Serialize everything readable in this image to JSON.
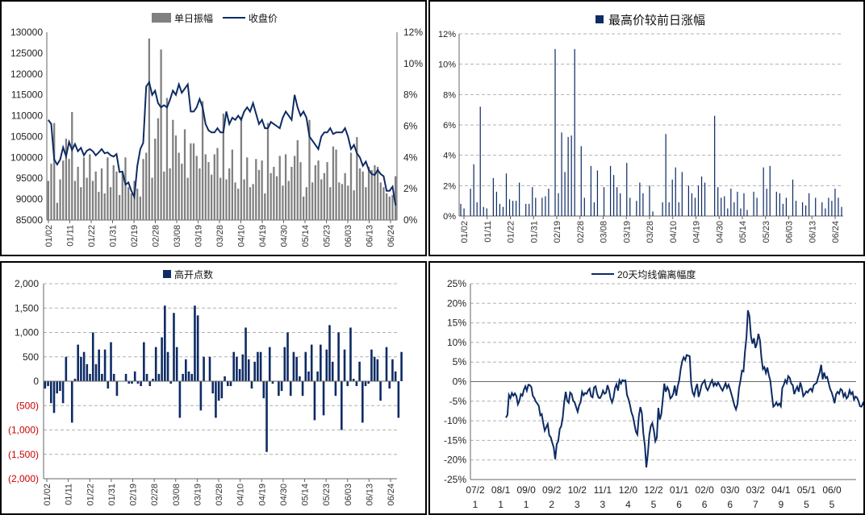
{
  "colors": {
    "gray_bar": "#808080",
    "navy": "#0d2b64",
    "grid": "#b0b0b0",
    "negative_label": "#cc0000"
  },
  "chart_data": [
    {
      "type": "bar+line",
      "title": "",
      "legend": [
        {
          "name": "单日振幅",
          "kind": "bar"
        },
        {
          "name": "收盘价",
          "kind": "line"
        }
      ],
      "legend_placement": "top",
      "y_left": {
        "min": 85000,
        "max": 130000,
        "ticks": [
          85000,
          90000,
          95000,
          100000,
          105000,
          110000,
          115000,
          120000,
          125000,
          130000
        ]
      },
      "y_right": {
        "min": 0,
        "max": 0.12,
        "tick_labels": [
          "0%",
          "2%",
          "4%",
          "6%",
          "8%",
          "10%",
          "12%"
        ]
      },
      "x_tick_labels": [
        "01/02",
        "01/11",
        "01/22",
        "01/31",
        "02/19",
        "02/28",
        "03/08",
        "03/19",
        "03/28",
        "04/10",
        "04/19",
        "04/30",
        "05/14",
        "05/23",
        "06/03",
        "06/13",
        "06/24"
      ],
      "n_points": 118,
      "amplitude_pct": [
        2.5,
        3.6,
        6.2,
        1.1,
        2.6,
        3.8,
        5.2,
        3.9,
        6.9,
        2.5,
        3.4,
        2.1,
        4.0,
        2.7,
        4.2,
        2.5,
        3.1,
        1.8,
        3.3,
        1.7,
        4.0,
        2.1,
        3.5,
        3.1,
        1.6,
        3.0,
        4.0,
        2.1,
        1.7,
        2.5,
        2.0,
        1.5,
        3.9,
        4.3,
        11.6,
        2.7,
        5.2,
        6.5,
        10.9,
        3.1,
        7.8,
        3.3,
        6.4,
        5.4,
        4.3,
        3.6,
        5.8,
        2.7,
        4.9,
        4.9,
        4.1,
        3.3,
        7.6,
        4.2,
        3.7,
        2.9,
        4.2,
        4.6,
        2.7,
        6.8,
        2.6,
        3.3,
        4.5,
        2.4,
        2.0,
        6.6,
        2.6,
        4.0,
        2.1,
        2.3,
        3.9,
        3.2,
        3.8,
        1.7,
        6.2,
        3.0,
        3.4,
        2.8,
        4.1,
        2.2,
        4.2,
        2.5,
        3.4,
        4.1,
        5.1,
        3.7,
        1.5,
        2.1,
        6.4,
        2.4,
        3.5,
        3.8,
        2.6,
        3.0,
        3.7,
        2.1,
        4.7,
        4.5,
        2.4,
        2.3,
        3.0,
        2.2,
        4.3,
        1.9,
        5.3,
        3.3,
        3.1,
        2.1,
        3.4,
        3.2,
        3.5,
        3.4,
        2.4,
        2.1,
        1.7,
        1.5,
        1.6,
        2.8
      ],
      "close": [
        109000,
        108000,
        99500,
        98300,
        99500,
        102400,
        100300,
        103700,
        101800,
        103200,
        101500,
        102300,
        100500,
        101600,
        102000,
        101500,
        100500,
        101200,
        102000,
        101000,
        101200,
        100500,
        100200,
        100800,
        96500,
        96600,
        93500,
        94000,
        92000,
        90500,
        98000,
        102000,
        103500,
        117000,
        118000,
        115000,
        116000,
        113000,
        112000,
        112500,
        112000,
        113800,
        116000,
        115000,
        117500,
        115500,
        116500,
        117500,
        111000,
        111000,
        112000,
        114000,
        112000,
        108000,
        106500,
        106000,
        106000,
        107000,
        106000,
        106000,
        111000,
        108000,
        109500,
        109000,
        110000,
        109000,
        111000,
        112000,
        111000,
        113000,
        110500,
        108000,
        109000,
        107000,
        107000,
        108500,
        108000,
        107500,
        107000,
        109500,
        111000,
        110000,
        109000,
        115000,
        112000,
        110000,
        111000,
        109500,
        105000,
        104000,
        103000,
        102000,
        105000,
        106000,
        106000,
        107000,
        105600,
        106000,
        106000,
        106000,
        107000,
        105000,
        102000,
        103000,
        101000,
        100000,
        98000,
        99000,
        97000,
        96000,
        95800,
        97000,
        96000,
        95500,
        92000,
        92000,
        93000,
        88500
      ]
    },
    {
      "type": "bar",
      "title": "最高价较前日涨幅",
      "legend_placement": "top",
      "y": {
        "min": 0,
        "max": 0.12,
        "tick_labels": [
          "0%",
          "2%",
          "4%",
          "6%",
          "8%",
          "10%",
          "12%"
        ]
      },
      "x_tick_labels": [
        "01/02",
        "01/11",
        "01/22",
        "01/31",
        "02/19",
        "02/28",
        "03/08",
        "03/19",
        "03/28",
        "04/10",
        "04/19",
        "04/30",
        "05/14",
        "05/23",
        "06/03",
        "06/13",
        "06/24"
      ],
      "n_points": 118,
      "values_pct": [
        0.8,
        0.5,
        0,
        1.8,
        3.4,
        0.9,
        7.2,
        0.6,
        0.5,
        0,
        2.5,
        1.6,
        0.8,
        0.6,
        2.8,
        1.1,
        1.0,
        1.0,
        2.2,
        0,
        0.8,
        0.8,
        1.9,
        1.2,
        0,
        1.2,
        1.3,
        1.8,
        0,
        11.0,
        1.5,
        5.5,
        2.9,
        5.2,
        5.3,
        11.0,
        0,
        4.6,
        1.2,
        0,
        3.3,
        0.9,
        3.0,
        0,
        1.9,
        0,
        3.3,
        2.7,
        1.9,
        1.5,
        0,
        3.5,
        1.2,
        0,
        1.0,
        2.2,
        1.5,
        0,
        2.0,
        0.3,
        0,
        0,
        0.9,
        5.4,
        0.9,
        2.4,
        3.2,
        0.9,
        2.9,
        0,
        2.0,
        1.5,
        1.2,
        2.0,
        2.6,
        2.2,
        0,
        0,
        6.6,
        1.9,
        1.2,
        1.3,
        0.5,
        1.8,
        0.9,
        1.6,
        0.5,
        1.5,
        0.4,
        0,
        1.6,
        1.2,
        0,
        3.2,
        1.8,
        3.3,
        0,
        1.6,
        1.5,
        0.8,
        1.2,
        0,
        2.4,
        1.0,
        0,
        0.9,
        0.7,
        1.5,
        0,
        1.2,
        0,
        0.9,
        0.5,
        1.2,
        1.0,
        1.8,
        1.2,
        0.6
      ],
      "bar_color": "#0d2b64"
    },
    {
      "type": "bar",
      "title": "高开点数",
      "legend_placement": "top",
      "y": {
        "min": -2000,
        "max": 2000,
        "tick_labels": [
          "2,000",
          "1,500",
          "1,000",
          "500",
          "0",
          "(500)",
          "(1,000)",
          "(1,500)",
          "(2,000)"
        ]
      },
      "x_tick_labels": [
        "01/02",
        "01/11",
        "01/22",
        "01/31",
        "02/19",
        "02/28",
        "03/08",
        "03/19",
        "03/28",
        "04/10",
        "04/19",
        "04/30",
        "05/14",
        "05/23",
        "06/03",
        "06/13",
        "06/24"
      ],
      "n_points": 118,
      "values": [
        -150,
        -100,
        -450,
        -650,
        -250,
        -200,
        -450,
        500,
        0,
        -850,
        50,
        750,
        500,
        600,
        350,
        150,
        1000,
        350,
        650,
        150,
        650,
        -150,
        800,
        150,
        -300,
        0,
        0,
        150,
        -50,
        -50,
        200,
        -50,
        -100,
        800,
        150,
        -100,
        50,
        700,
        150,
        900,
        1550,
        600,
        -50,
        1400,
        700,
        -750,
        150,
        450,
        200,
        150,
        1550,
        1350,
        -600,
        500,
        0,
        500,
        -250,
        -750,
        -400,
        -350,
        100,
        -100,
        -100,
        600,
        500,
        250,
        550,
        1100,
        450,
        -150,
        400,
        600,
        600,
        -350,
        -1450,
        700,
        -50,
        0,
        -300,
        -200,
        700,
        1000,
        -300,
        600,
        500,
        100,
        -300,
        600,
        200,
        750,
        -800,
        200,
        750,
        -700,
        650,
        1150,
        400,
        -300,
        1000,
        -1000,
        650,
        -100,
        1100,
        50,
        -100,
        400,
        -850,
        -100,
        -50,
        650,
        500,
        450,
        -400,
        0,
        700,
        -150,
        450,
        200,
        -750,
        600
      ],
      "bar_color": "#0d2b64"
    },
    {
      "type": "line",
      "title": "20天均线偏离幅度",
      "legend_placement": "top",
      "y": {
        "min": -0.25,
        "max": 0.25,
        "tick_labels": [
          "25%",
          "20%",
          "15%",
          "10%",
          "5%",
          "0%",
          "-5%",
          "-10%",
          "-15%",
          "-20%",
          "-25%"
        ]
      },
      "x_tick_labels": [
        [
          "07/2",
          "1"
        ],
        [
          "08/1",
          "1"
        ],
        [
          "09/0",
          "1"
        ],
        [
          "09/2",
          "2"
        ],
        [
          "10/2",
          "3"
        ],
        [
          "11/1",
          "3"
        ],
        [
          "12/0",
          "4"
        ],
        [
          "12/2",
          "5"
        ],
        [
          "01/1",
          "6"
        ],
        [
          "02/0",
          "6"
        ],
        [
          "03/0",
          "6"
        ],
        [
          "03/2",
          "7"
        ],
        [
          "04/1",
          "9"
        ],
        [
          "05/1",
          "5"
        ],
        [
          "06/0",
          "5"
        ]
      ],
      "n_points": 230,
      "values_pct": [
        -9.2,
        -8.5,
        -3.4,
        -4.2,
        -2.9,
        -3.6,
        -3.0,
        -3.7,
        -5.8,
        -4.9,
        -3.2,
        -3.6,
        -2.1,
        -1.2,
        -2.3,
        -0.8,
        -0.9,
        -1.4,
        -3.6,
        -4.2,
        -5.1,
        -5.6,
        -6.2,
        -8.6,
        -8.3,
        -10.7,
        -12.5,
        -11.6,
        -10.8,
        -13.7,
        -14.2,
        -15.6,
        -16.8,
        -19.8,
        -15.9,
        -15.2,
        -12.1,
        -11.4,
        -9.2,
        -5.3,
        -2.6,
        -4.9,
        -5.4,
        -2.8,
        -3.2,
        -4.9,
        -5.3,
        -6.5,
        -7.7,
        -6.1,
        -5.2,
        -2.6,
        -3.5,
        -2.9,
        -3.1,
        -2.3,
        -1.8,
        -3.7,
        -4.0,
        -1.5,
        -1.2,
        -3.0,
        -4.1,
        -4.2,
        -3.5,
        -2.3,
        -3.1,
        -2.8,
        -0.9,
        -2.2,
        -4.2,
        -5.3,
        -4.1,
        -1.6,
        -0.7,
        -2.3,
        0.3,
        -0.5,
        0.4,
        0.2,
        0.3,
        -3.4,
        -4.4,
        -5.9,
        -7.8,
        -8.9,
        -10.8,
        -12.8,
        -13.5,
        -8.7,
        -6.5,
        -8.1,
        -13.2,
        -16.3,
        -21.9,
        -18.4,
        -13.6,
        -11.3,
        -10.6,
        -12.4,
        -15.2,
        -14.3,
        -6.7,
        -9.7,
        -8.3,
        -4.5,
        -0.5,
        -2.6,
        -1.4,
        -2.2,
        -4.3,
        -3.9,
        -3.1,
        -1.0,
        -3.6,
        -1.2,
        0.4,
        3.2,
        5.2,
        6.2,
        5.5,
        6.8,
        6.6,
        6.5,
        -0.5,
        -2.8,
        -3.6,
        -1.8,
        -0.6,
        -3.9,
        -2.5,
        -0.8,
        -0.2,
        0.3,
        -1.5,
        -2.2,
        -1.4,
        -0.3,
        0.4,
        -1.1,
        -0.4,
        -1.0,
        -0.2,
        -0.9,
        -1.7,
        -2.3,
        -1.4,
        -0.4,
        -1.6,
        -0.8,
        -1.9,
        -3.3,
        -4.6,
        -6.2,
        -7.1,
        -5.7,
        -1.8,
        0.3,
        2.8,
        2.6,
        7.5,
        11.3,
        18.2,
        16.7,
        11.5,
        9.7,
        11.1,
        8.6,
        9.8,
        12.2,
        10.6,
        6.2,
        3.2,
        3.7,
        2.2,
        3.6,
        1.6,
        0.2,
        -3.4,
        -6.4,
        -6.0,
        -5.3,
        -6.1,
        -5.6,
        -6.3,
        -1.6,
        -0.8,
        0.4,
        -0.4,
        1.4,
        0.9,
        -0.5,
        -0.9,
        -3.2,
        -2.1,
        -1.3,
        -2.6,
        -0.2,
        -1.5,
        -3.7,
        -3.2,
        -2.5,
        -2.8,
        -2.1,
        -1.8,
        -2.5,
        -0.9,
        -0.6,
        -0.3,
        1.2,
        2.3,
        4.3,
        0.6,
        2.3,
        0.9,
        1.2,
        -0.3,
        -1.9,
        -2.7,
        -4.0,
        -5.5,
        -3.2,
        -2.6,
        -3.1,
        -1.9,
        -2.2,
        -3.8,
        -3.0,
        -4.3,
        -3.8,
        -2.2,
        -3.2,
        -2.7,
        -4.6,
        -3.8,
        -4.1,
        -5.0,
        -6.3,
        -6.4,
        -5.5,
        -6.3,
        -5.9,
        -7.6,
        -8.9,
        -7.6,
        -6.0,
        -6.6,
        -6.3,
        -8.6,
        -10.6
      ],
      "line_color": "#0d2b64"
    }
  ]
}
